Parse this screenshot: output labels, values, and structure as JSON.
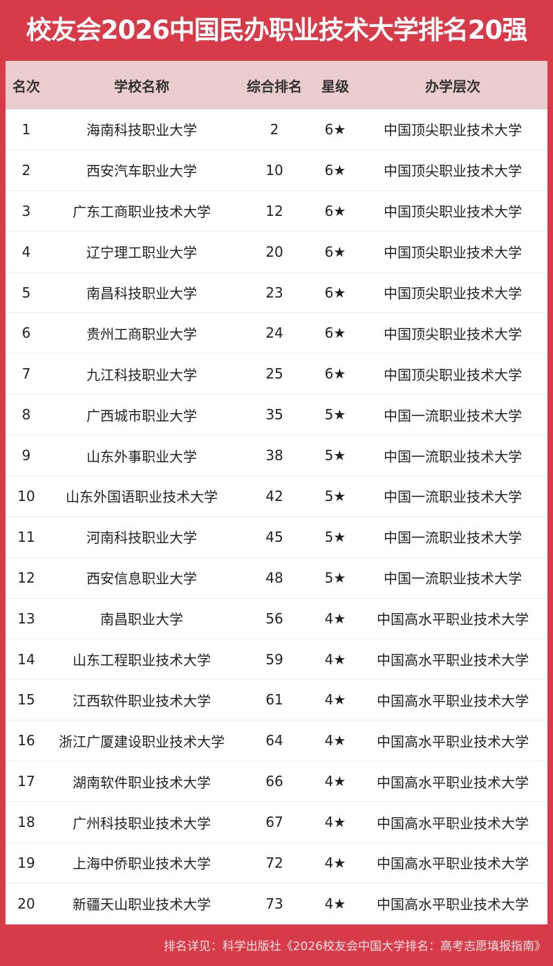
{
  "title": "校友会2026中国民办职业技术大学排名20强",
  "headers": [
    "名次",
    "学校名称",
    "综合排名",
    "星级",
    "办学层次"
  ],
  "rows": [
    [
      "1",
      "海南科技职业大学",
      "2",
      "6★",
      "中国顶尖职业技术大学"
    ],
    [
      "2",
      "西安汽车职业大学",
      "10",
      "6★",
      "中国顶尖职业技术大学"
    ],
    [
      "3",
      "广东工商职业技术大学",
      "12",
      "6★",
      "中国顶尖职业技术大学"
    ],
    [
      "4",
      "辽宁理工职业大学",
      "20",
      "6★",
      "中国顶尖职业技术大学"
    ],
    [
      "5",
      "南昌科技职业大学",
      "23",
      "6★",
      "中国顶尖职业技术大学"
    ],
    [
      "6",
      "贵州工商职业大学",
      "24",
      "6★",
      "中国顶尖职业技术大学"
    ],
    [
      "7",
      "九江科技职业大学",
      "25",
      "6★",
      "中国顶尖职业技术大学"
    ],
    [
      "8",
      "广西城市职业大学",
      "35",
      "5★",
      "中国一流职业技术大学"
    ],
    [
      "9",
      "山东外事职业大学",
      "38",
      "5★",
      "中国一流职业技术大学"
    ],
    [
      "10",
      "山东外国语职业技术大学",
      "42",
      "5★",
      "中国一流职业技术大学"
    ],
    [
      "11",
      "河南科技职业大学",
      "45",
      "5★",
      "中国一流职业技术大学"
    ],
    [
      "12",
      "西安信息职业大学",
      "48",
      "5★",
      "中国一流职业技术大学"
    ],
    [
      "13",
      "南昌职业大学",
      "56",
      "4★",
      "中国高水平职业技术大学"
    ],
    [
      "14",
      "山东工程职业技术大学",
      "59",
      "4★",
      "中国高水平职业技术大学"
    ],
    [
      "15",
      "江西软件职业技术大学",
      "61",
      "4★",
      "中国高水平职业技术大学"
    ],
    [
      "16",
      "浙江广厦建设职业技术大学",
      "64",
      "4★",
      "中国高水平职业技术大学"
    ],
    [
      "17",
      "湖南软件职业技术大学",
      "66",
      "4★",
      "中国高水平职业技术大学"
    ],
    [
      "18",
      "广州科技职业技术大学",
      "67",
      "4★",
      "中国高水平职业技术大学"
    ],
    [
      "19",
      "上海中侨职业技术大学",
      "72",
      "4★",
      "中国高水平职业技术大学"
    ],
    [
      "20",
      "新疆天山职业技术大学",
      "73",
      "4★",
      "中国高水平职业技术大学"
    ]
  ],
  "footer": "排名详见：科学出版社《2026校友会中国大学排名：高考志愿填报指南》",
  "colors": {
    "brand_red": "#d73a48",
    "header_bg": "#ebcdce"
  }
}
